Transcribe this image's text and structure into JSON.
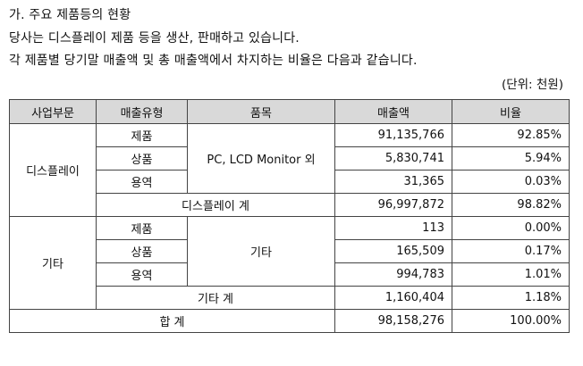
{
  "intro": {
    "line1": "가. 주요 제품등의 현황",
    "line2": "당사는 디스플레이 제품 등을 생산, 판매하고 있습니다.",
    "line3": "각 제품별 당기말 매출액 및 총 매출액에서 차지하는 비율은 다음과 같습니다."
  },
  "unit_label": "(단위: 천원)",
  "table": {
    "headers": [
      "사업부문",
      "매출유형",
      "품목",
      "매출액",
      "비율"
    ],
    "display": {
      "segment": "디스플레이",
      "product": "PC, LCD Monitor 외",
      "rows": [
        {
          "type": "제품",
          "sales": "91,135,766",
          "ratio": "92.85%"
        },
        {
          "type": "상품",
          "sales": "5,830,741",
          "ratio": "5.94%"
        },
        {
          "type": "용역",
          "sales": "31,365",
          "ratio": "0.03%"
        }
      ],
      "subtotal": {
        "label": "디스플레이 계",
        "sales": "96,997,872",
        "ratio": "98.82%"
      }
    },
    "other": {
      "segment": "기타",
      "product": "기타",
      "rows": [
        {
          "type": "제품",
          "sales": "113",
          "ratio": "0.00%"
        },
        {
          "type": "상품",
          "sales": "165,509",
          "ratio": "0.17%"
        },
        {
          "type": "용역",
          "sales": "994,783",
          "ratio": "1.01%"
        }
      ],
      "subtotal": {
        "label": "기타 계",
        "sales": "1,160,404",
        "ratio": "1.18%"
      }
    },
    "total": {
      "label": "합 계",
      "sales": "98,158,276",
      "ratio": "100.00%"
    }
  }
}
